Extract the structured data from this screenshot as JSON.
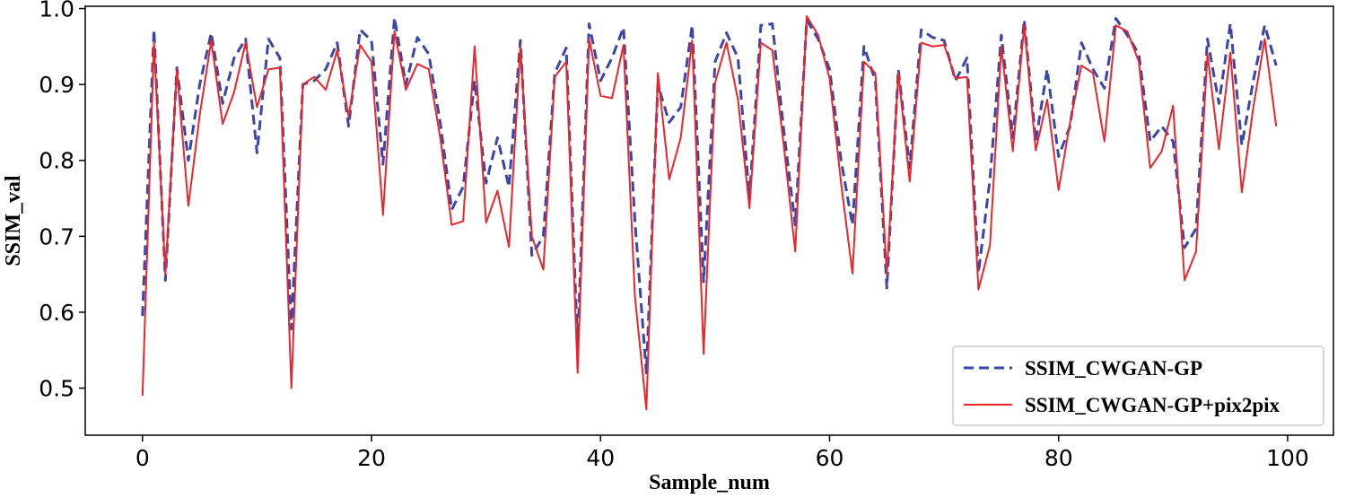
{
  "chart_data": {
    "type": "line",
    "title": "",
    "xlabel": "Sample_num",
    "ylabel": "SSIM_val",
    "xlim": [
      -5,
      104
    ],
    "ylim": [
      0.438,
      1.003
    ],
    "xticks": [
      0,
      20,
      40,
      60,
      80,
      100
    ],
    "xtick_labels": [
      "0",
      "20",
      "40",
      "60",
      "80",
      "100"
    ],
    "yticks": [
      0.5,
      0.6,
      0.7,
      0.8,
      0.9,
      1.0
    ],
    "ytick_labels": [
      "0.5",
      "0.6",
      "0.7",
      "0.8",
      "0.9",
      "1.0"
    ],
    "grid": false,
    "legend_position": "lower-right",
    "x": [
      0,
      1,
      2,
      3,
      4,
      5,
      6,
      7,
      8,
      9,
      10,
      11,
      12,
      13,
      14,
      15,
      16,
      17,
      18,
      19,
      20,
      21,
      22,
      23,
      24,
      25,
      26,
      27,
      28,
      29,
      30,
      31,
      32,
      33,
      34,
      35,
      36,
      37,
      38,
      39,
      40,
      41,
      42,
      43,
      44,
      45,
      46,
      47,
      48,
      49,
      50,
      51,
      52,
      53,
      54,
      55,
      56,
      57,
      58,
      59,
      60,
      61,
      62,
      63,
      64,
      65,
      66,
      67,
      68,
      69,
      70,
      71,
      72,
      73,
      74,
      75,
      76,
      77,
      78,
      79,
      80,
      81,
      82,
      83,
      84,
      85,
      86,
      87,
      88,
      89,
      90,
      91,
      92,
      93,
      94,
      95,
      96,
      97,
      98,
      99
    ],
    "series": [
      {
        "name": "SSIM_CWGAN-GP",
        "color": "#3a46a8",
        "style": "dashed",
        "values": [
          0.595,
          0.972,
          0.642,
          0.922,
          0.8,
          0.9,
          0.968,
          0.875,
          0.935,
          0.96,
          0.81,
          0.96,
          0.935,
          0.578,
          0.9,
          0.905,
          0.92,
          0.955,
          0.845,
          0.972,
          0.958,
          0.795,
          0.988,
          0.9,
          0.962,
          0.94,
          0.85,
          0.735,
          0.765,
          0.905,
          0.77,
          0.83,
          0.765,
          0.958,
          0.675,
          0.7,
          0.915,
          0.948,
          0.555,
          0.98,
          0.905,
          0.935,
          0.975,
          0.72,
          0.52,
          0.9,
          0.85,
          0.87,
          0.978,
          0.64,
          0.93,
          0.968,
          0.935,
          0.75,
          0.978,
          0.98,
          0.84,
          0.715,
          0.985,
          0.96,
          0.92,
          0.8,
          0.715,
          0.95,
          0.905,
          0.632,
          0.92,
          0.79,
          0.972,
          0.962,
          0.958,
          0.905,
          0.935,
          0.652,
          0.775,
          0.965,
          0.83,
          0.985,
          0.825,
          0.92,
          0.805,
          0.845,
          0.955,
          0.92,
          0.895,
          0.987,
          0.965,
          0.94,
          0.825,
          0.845,
          0.825,
          0.685,
          0.71,
          0.96,
          0.875,
          0.98,
          0.82,
          0.905,
          0.978,
          0.925
        ]
      },
      {
        "name": "SSIM_CWGAN-GP+pix2pix",
        "color": "#e8262b",
        "style": "solid",
        "values": [
          0.49,
          0.955,
          0.65,
          0.92,
          0.74,
          0.86,
          0.958,
          0.848,
          0.89,
          0.955,
          0.87,
          0.92,
          0.922,
          0.5,
          0.9,
          0.91,
          0.893,
          0.945,
          0.858,
          0.952,
          0.93,
          0.728,
          0.97,
          0.893,
          0.927,
          0.92,
          0.83,
          0.715,
          0.72,
          0.95,
          0.718,
          0.76,
          0.686,
          0.95,
          0.7,
          0.656,
          0.91,
          0.93,
          0.52,
          0.96,
          0.885,
          0.882,
          0.952,
          0.62,
          0.472,
          0.915,
          0.775,
          0.83,
          0.958,
          0.545,
          0.902,
          0.955,
          0.88,
          0.737,
          0.955,
          0.945,
          0.82,
          0.68,
          0.99,
          0.965,
          0.908,
          0.77,
          0.651,
          0.93,
          0.915,
          0.65,
          0.915,
          0.772,
          0.955,
          0.95,
          0.952,
          0.908,
          0.91,
          0.63,
          0.688,
          0.95,
          0.812,
          0.978,
          0.813,
          0.88,
          0.761,
          0.85,
          0.925,
          0.915,
          0.825,
          0.978,
          0.97,
          0.93,
          0.79,
          0.812,
          0.872,
          0.642,
          0.68,
          0.94,
          0.815,
          0.942,
          0.758,
          0.87,
          0.96,
          0.845
        ]
      }
    ]
  }
}
